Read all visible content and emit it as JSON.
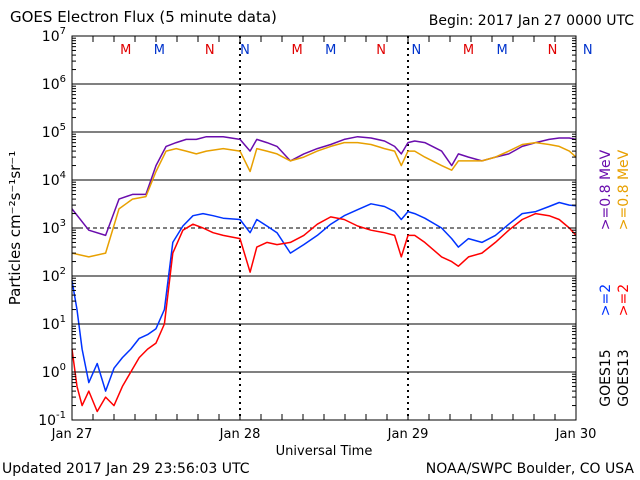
{
  "page": {
    "title": "GOES Electron Flux (5 minute data)",
    "begin": "Begin: 2017 Jan 27 0000 UTC",
    "updated": "Updated 2017 Jan 29 23:56:03 UTC",
    "credit": "NOAA/SWPC Boulder, CO USA"
  },
  "colors": {
    "goes15_08": "#6a0dad",
    "goes13_08": "#e8a000",
    "goes15_2": "#0033ff",
    "goes13_2": "#ff0000",
    "midnight_marker": "#e00000",
    "noon_marker": "#0033cc"
  },
  "chart_data": {
    "type": "line",
    "title": "GOES Electron Flux (5 minute data)",
    "xlabel": "Universal Time",
    "ylabel": "Particles cm⁻²s⁻¹sr⁻¹",
    "y_scale": "log",
    "ylim": [
      0.1,
      10000000
    ],
    "xlim": [
      "2017-01-27 00:00",
      "2017-01-30 00:00"
    ],
    "x_ticks": [
      "Jan 27",
      "Jan 28",
      "Jan 29",
      "Jan 30"
    ],
    "y_ticks": [
      {
        "value": 0.1,
        "label": "10",
        "exp": "-1"
      },
      {
        "value": 1,
        "label": "10",
        "exp": "0"
      },
      {
        "value": 10,
        "label": "10",
        "exp": "1"
      },
      {
        "value": 100,
        "label": "10",
        "exp": "2"
      },
      {
        "value": 1000,
        "label": "10",
        "exp": "3"
      },
      {
        "value": 10000,
        "label": "10",
        "exp": "4"
      },
      {
        "value": 100000,
        "label": "10",
        "exp": "5"
      },
      {
        "value": 1000000,
        "label": "10",
        "exp": "6"
      },
      {
        "value": 10000000,
        "label": "10",
        "exp": "7"
      }
    ],
    "threshold_line": 1000,
    "markers": [
      {
        "label": "M",
        "day": 0.32,
        "color": "red"
      },
      {
        "label": "M",
        "day": 0.52,
        "color": "blue"
      },
      {
        "label": "N",
        "day": 0.82,
        "color": "red"
      },
      {
        "label": "N",
        "day": 1.03,
        "color": "blue"
      },
      {
        "label": "M",
        "day": 1.34,
        "color": "red"
      },
      {
        "label": "M",
        "day": 1.54,
        "color": "blue"
      },
      {
        "label": "N",
        "day": 1.84,
        "color": "red"
      },
      {
        "label": "N",
        "day": 2.05,
        "color": "blue"
      },
      {
        "label": "M",
        "day": 2.36,
        "color": "red"
      },
      {
        "label": "M",
        "day": 2.56,
        "color": "blue"
      },
      {
        "label": "N",
        "day": 2.86,
        "color": "red"
      },
      {
        "label": "N",
        "day": 3.07,
        "color": "blue"
      }
    ],
    "right_legend": [
      {
        "text": ">=0.8 MeV",
        "color": "orange"
      },
      {
        "text": ">=0.8 MeV",
        "color": "purple"
      },
      {
        "text": ">=2",
        "color": "red"
      },
      {
        "text": ">=2",
        "color": "blue"
      },
      {
        "text": "GOES13",
        "color": "black"
      },
      {
        "text": "GOES15",
        "color": "black"
      }
    ],
    "series": [
      {
        "name": "GOES15 >=0.8 MeV",
        "color_key": "goes15_08",
        "x": [
          0,
          0.1,
          0.2,
          0.28,
          0.36,
          0.44,
          0.5,
          0.56,
          0.62,
          0.68,
          0.74,
          0.8,
          0.9,
          1.0,
          1.06,
          1.1,
          1.16,
          1.22,
          1.3,
          1.38,
          1.46,
          1.54,
          1.62,
          1.7,
          1.78,
          1.86,
          1.92,
          1.96,
          2.0,
          2.04,
          2.1,
          2.2,
          2.26,
          2.3,
          2.36,
          2.44,
          2.52,
          2.6,
          2.68,
          2.76,
          2.84,
          2.9,
          2.96,
          3.0
        ],
        "y": [
          2500,
          900,
          700,
          4000,
          5000,
          5000,
          20000,
          50000,
          60000,
          70000,
          70000,
          80000,
          80000,
          70000,
          40000,
          70000,
          60000,
          50000,
          25000,
          35000,
          45000,
          55000,
          70000,
          80000,
          75000,
          65000,
          50000,
          35000,
          60000,
          65000,
          60000,
          40000,
          20000,
          35000,
          30000,
          25000,
          30000,
          35000,
          50000,
          60000,
          70000,
          75000,
          75000,
          70000
        ]
      },
      {
        "name": "GOES13 >=0.8 MeV",
        "color_key": "goes13_08",
        "x": [
          0,
          0.1,
          0.2,
          0.28,
          0.36,
          0.44,
          0.5,
          0.56,
          0.62,
          0.68,
          0.74,
          0.8,
          0.9,
          1.0,
          1.06,
          1.1,
          1.16,
          1.22,
          1.3,
          1.38,
          1.46,
          1.54,
          1.62,
          1.7,
          1.78,
          1.86,
          1.92,
          1.96,
          2.0,
          2.04,
          2.1,
          2.2,
          2.26,
          2.3,
          2.36,
          2.44,
          2.52,
          2.6,
          2.68,
          2.76,
          2.84,
          2.9,
          2.96,
          3.0
        ],
        "y": [
          300,
          250,
          300,
          2500,
          4000,
          4500,
          15000,
          40000,
          45000,
          40000,
          35000,
          40000,
          45000,
          40000,
          15000,
          45000,
          40000,
          35000,
          25000,
          30000,
          40000,
          50000,
          60000,
          60000,
          55000,
          45000,
          40000,
          20000,
          40000,
          40000,
          30000,
          20000,
          16000,
          25000,
          25000,
          25000,
          30000,
          40000,
          55000,
          60000,
          55000,
          50000,
          40000,
          30000
        ]
      },
      {
        "name": "GOES15 >=2",
        "color_key": "goes15_2",
        "x": [
          0,
          0.03,
          0.06,
          0.1,
          0.15,
          0.2,
          0.25,
          0.3,
          0.35,
          0.4,
          0.45,
          0.5,
          0.55,
          0.6,
          0.66,
          0.72,
          0.78,
          0.84,
          0.9,
          1.0,
          1.06,
          1.1,
          1.16,
          1.22,
          1.3,
          1.38,
          1.46,
          1.54,
          1.62,
          1.7,
          1.78,
          1.86,
          1.92,
          1.96,
          2.0,
          2.04,
          2.1,
          2.2,
          2.26,
          2.3,
          2.36,
          2.44,
          2.52,
          2.6,
          2.68,
          2.76,
          2.84,
          2.9,
          2.96,
          3.0
        ],
        "y": [
          80,
          20,
          3,
          0.6,
          1.5,
          0.4,
          1.2,
          2,
          3,
          5,
          6,
          8,
          20,
          500,
          1100,
          1800,
          2000,
          1800,
          1600,
          1500,
          800,
          1500,
          1100,
          800,
          300,
          450,
          700,
          1200,
          1800,
          2400,
          3200,
          2800,
          2200,
          1500,
          2200,
          2000,
          1600,
          1000,
          600,
          400,
          600,
          500,
          700,
          1200,
          2000,
          2200,
          2800,
          3400,
          3000,
          2900
        ]
      },
      {
        "name": "GOES13 >=2",
        "color_key": "goes13_2",
        "x": [
          0,
          0.03,
          0.06,
          0.1,
          0.15,
          0.2,
          0.25,
          0.3,
          0.35,
          0.4,
          0.45,
          0.5,
          0.55,
          0.6,
          0.66,
          0.72,
          0.78,
          0.84,
          0.9,
          1.0,
          1.06,
          1.1,
          1.16,
          1.22,
          1.3,
          1.38,
          1.46,
          1.54,
          1.62,
          1.7,
          1.78,
          1.86,
          1.92,
          1.96,
          2.0,
          2.04,
          2.1,
          2.2,
          2.26,
          2.3,
          2.36,
          2.44,
          2.52,
          2.6,
          2.68,
          2.76,
          2.84,
          2.9,
          2.96,
          3.0
        ],
        "y": [
          3,
          0.5,
          0.2,
          0.4,
          0.15,
          0.3,
          0.2,
          0.5,
          1,
          2,
          3,
          4,
          10,
          300,
          900,
          1200,
          1000,
          800,
          700,
          600,
          120,
          400,
          500,
          450,
          500,
          700,
          1200,
          1700,
          1500,
          1100,
          900,
          800,
          700,
          250,
          700,
          700,
          500,
          250,
          200,
          160,
          250,
          300,
          500,
          900,
          1500,
          2000,
          1800,
          1500,
          1000,
          700
        ]
      }
    ]
  }
}
